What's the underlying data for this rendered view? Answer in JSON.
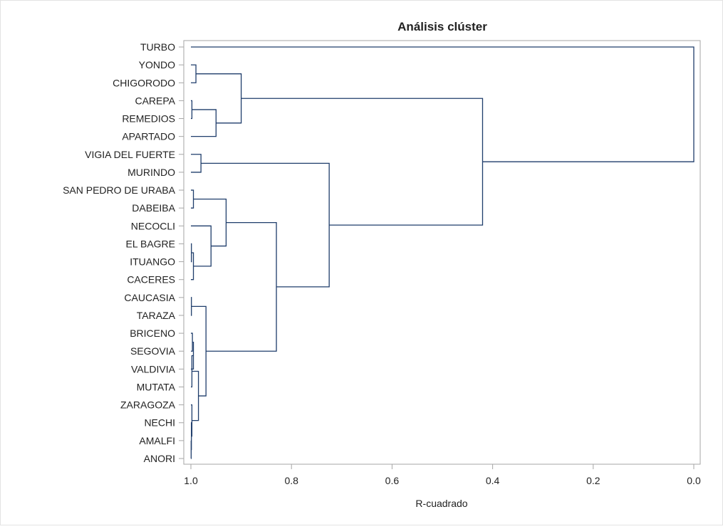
{
  "chart_data": {
    "type": "dendrogram",
    "title": "Análisis clúster",
    "xlabel": "R-cuadrado",
    "xlim": [
      1.0,
      0.0
    ],
    "x_ticks": [
      "1.0",
      "0.8",
      "0.6",
      "0.4",
      "0.2",
      "0.0"
    ],
    "x_tick_values": [
      1.0,
      0.8,
      0.6,
      0.4,
      0.2,
      0.0
    ],
    "colors": {
      "line": "#1f3d6b",
      "frame": "#a6a6a6",
      "text": "#222222"
    },
    "leaves": [
      "TURBO",
      "YONDO",
      "CHIGORODO",
      "CAREPA",
      "REMEDIOS",
      "APARTADO",
      "VIGIA DEL FUERTE",
      "MURINDO",
      "SAN PEDRO DE URABA",
      "DABEIBA",
      "NECOCLI",
      "EL BAGRE",
      "ITUANGO",
      "CACERES",
      "CAUCASIA",
      "TARAZA",
      "BRICENO",
      "SEGOVIA",
      "VALDIVIA",
      "MUTATA",
      "ZARAGOZA",
      "NECHI",
      "AMALFI",
      "ANORI"
    ],
    "merges": [
      {
        "left": "YONDO",
        "right": "CHIGORODO",
        "r2": 0.99
      },
      {
        "left": "CAREPA",
        "right": "REMEDIOS",
        "r2": 0.998
      },
      {
        "left": "c2",
        "right": "APARTADO",
        "r2": 0.95
      },
      {
        "left": "c1",
        "right": "c3",
        "r2": 0.9
      },
      {
        "left": "VIGIA DEL FUERTE",
        "right": "MURINDO",
        "r2": 0.98
      },
      {
        "left": "SAN PEDRO DE URABA",
        "right": "DABEIBA",
        "r2": 0.995
      },
      {
        "left": "EL BAGRE",
        "right": "ITUANGO",
        "r2": 0.999
      },
      {
        "left": "c7",
        "right": "CACERES",
        "r2": 0.995
      },
      {
        "left": "NECOCLI",
        "right": "c8",
        "r2": 0.96
      },
      {
        "left": "c6",
        "right": "c9",
        "r2": 0.93
      },
      {
        "left": "CAUCASIA",
        "right": "TARAZA",
        "r2": 0.999
      },
      {
        "left": "BRICENO",
        "right": "SEGOVIA",
        "r2": 0.997
      },
      {
        "left": "c12",
        "right": "VALDIVIA",
        "r2": 0.995
      },
      {
        "left": "c13",
        "right": "MUTATA",
        "r2": 0.998
      },
      {
        "left": "AMALFI",
        "right": "ANORI",
        "r2": 0.9995
      },
      {
        "left": "NECHI",
        "right": "c15",
        "r2": 0.999
      },
      {
        "left": "ZARAGOZA",
        "right": "c16",
        "r2": 0.998
      },
      {
        "left": "c14",
        "right": "c17",
        "r2": 0.985
      },
      {
        "left": "c11",
        "right": "c18",
        "r2": 0.97
      },
      {
        "left": "c10",
        "right": "c19",
        "r2": 0.83
      },
      {
        "left": "c5",
        "right": "c20",
        "r2": 0.725
      },
      {
        "left": "c4",
        "right": "c21",
        "r2": 0.42
      },
      {
        "left": "TURBO",
        "right": "c22",
        "r2": 0.0
      }
    ]
  }
}
